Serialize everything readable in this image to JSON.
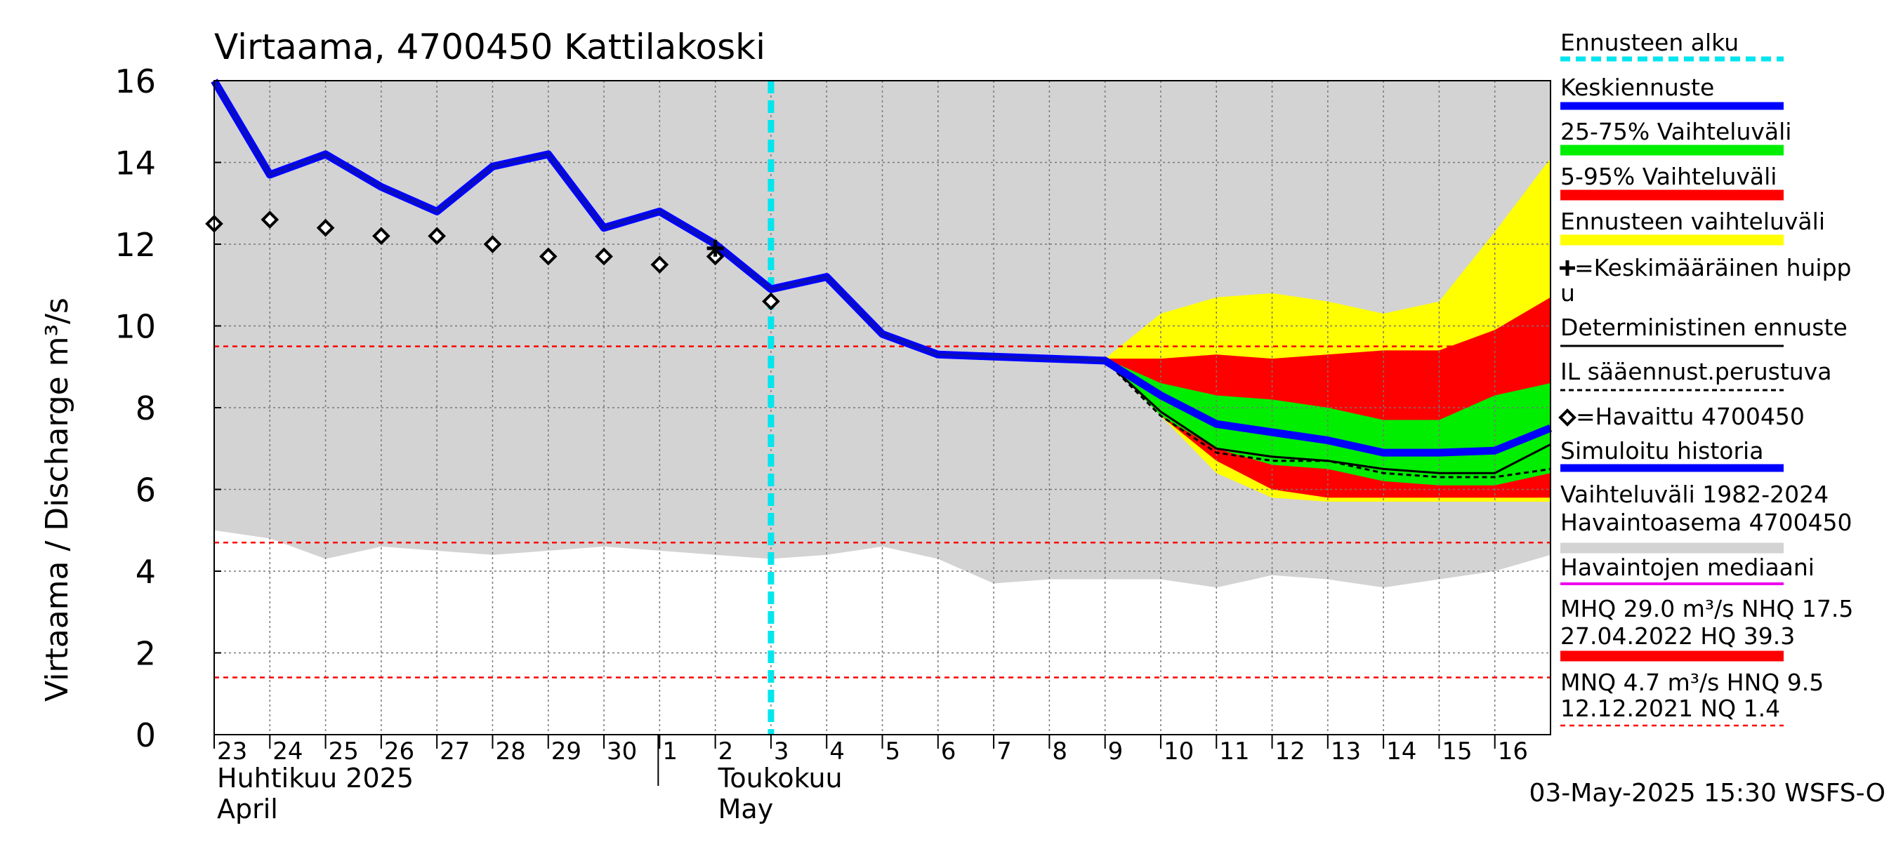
{
  "chart_data": {
    "type": "line",
    "title": "Virtaama, 4700450 Kattilakoski",
    "ylabel": "Virtaama / Discharge    m³/s",
    "ylim": [
      0,
      16
    ],
    "yticks": [
      0,
      2,
      4,
      6,
      8,
      10,
      12,
      14,
      16
    ],
    "grid": true,
    "legend_placement": "right",
    "x_ticks": [
      "23",
      "24",
      "25",
      "26",
      "27",
      "28",
      "29",
      "30",
      "1",
      "2",
      "3",
      "4",
      "5",
      "6",
      "7",
      "8",
      "9",
      "10",
      "11",
      "12",
      "13",
      "14",
      "15",
      "16"
    ],
    "month_labels": [
      {
        "fi": "Huhtikuu  2025",
        "en": "April",
        "at_day": 0
      },
      {
        "fi": "Toukokuu",
        "en": "May",
        "at_day": 9
      }
    ],
    "forecast_start_day": 10,
    "series": [
      {
        "name": "Vaihteluväli 1982-2024 Havaintoasema 4700450",
        "color": "#d3d3d3",
        "upper": [
          [
            0,
            16
          ],
          [
            24,
            16
          ]
        ],
        "lower": [
          [
            0,
            5
          ],
          [
            1,
            4.8
          ],
          [
            2,
            4.3
          ],
          [
            3,
            4.6
          ],
          [
            4,
            4.5
          ],
          [
            5,
            4.4
          ],
          [
            6,
            4.5
          ],
          [
            7,
            4.6
          ],
          [
            8,
            4.5
          ],
          [
            9,
            4.4
          ],
          [
            10,
            4.3
          ],
          [
            11,
            4.4
          ],
          [
            12,
            4.6
          ],
          [
            13,
            4.3
          ],
          [
            14,
            3.7
          ],
          [
            15,
            3.8
          ],
          [
            16,
            3.8
          ],
          [
            17,
            3.8
          ],
          [
            18,
            3.6
          ],
          [
            19,
            3.9
          ],
          [
            20,
            3.8
          ],
          [
            21,
            3.6
          ],
          [
            22,
            3.8
          ],
          [
            23,
            4.0
          ],
          [
            24,
            4.4
          ]
        ]
      },
      {
        "name": "Ennusteen vaihteluväli",
        "color": "#ffff00",
        "upper": [
          [
            16,
            9.2
          ],
          [
            17,
            10.3
          ],
          [
            18,
            10.7
          ],
          [
            19,
            10.8
          ],
          [
            20,
            10.6
          ],
          [
            21,
            10.3
          ],
          [
            22,
            10.6
          ],
          [
            23,
            12.3
          ],
          [
            24,
            14.1
          ]
        ],
        "lower": [
          [
            16,
            9.2
          ],
          [
            17,
            7.8
          ],
          [
            18,
            6.4
          ],
          [
            19,
            5.8
          ],
          [
            20,
            5.7
          ],
          [
            21,
            5.7
          ],
          [
            22,
            5.7
          ],
          [
            23,
            5.7
          ],
          [
            24,
            5.7
          ]
        ]
      },
      {
        "name": "5-95% Vaihteluväli",
        "color": "#ff0000",
        "upper": [
          [
            16,
            9.2
          ],
          [
            17,
            9.2
          ],
          [
            18,
            9.3
          ],
          [
            19,
            9.2
          ],
          [
            20,
            9.3
          ],
          [
            21,
            9.4
          ],
          [
            22,
            9.4
          ],
          [
            23,
            9.9
          ],
          [
            24,
            10.7
          ]
        ],
        "lower": [
          [
            16,
            9.2
          ],
          [
            17,
            7.8
          ],
          [
            18,
            6.7
          ],
          [
            19,
            6.0
          ],
          [
            20,
            5.8
          ],
          [
            21,
            5.8
          ],
          [
            22,
            5.8
          ],
          [
            23,
            5.8
          ],
          [
            24,
            5.8
          ]
        ]
      },
      {
        "name": "25-75% Vaihteluväli",
        "color": "#00ee00",
        "upper": [
          [
            16,
            9.2
          ],
          [
            17,
            8.6
          ],
          [
            18,
            8.3
          ],
          [
            19,
            8.2
          ],
          [
            20,
            8.0
          ],
          [
            21,
            7.7
          ],
          [
            22,
            7.7
          ],
          [
            23,
            8.3
          ],
          [
            24,
            8.6
          ]
        ],
        "lower": [
          [
            16,
            9.2
          ],
          [
            17,
            7.8
          ],
          [
            18,
            7.0
          ],
          [
            19,
            6.6
          ],
          [
            20,
            6.5
          ],
          [
            21,
            6.2
          ],
          [
            22,
            6.1
          ],
          [
            23,
            6.1
          ],
          [
            24,
            6.4
          ]
        ]
      },
      {
        "name": "Keskiennuste",
        "color": "#0000ff",
        "points": [
          [
            0,
            16
          ],
          [
            1,
            13.7
          ],
          [
            2,
            14.2
          ],
          [
            3,
            13.4
          ],
          [
            4,
            12.8
          ],
          [
            5,
            13.9
          ],
          [
            6,
            14.2
          ],
          [
            7,
            12.4
          ],
          [
            8,
            12.8
          ],
          [
            9,
            12.0
          ],
          [
            10,
            10.9
          ],
          [
            11,
            11.2
          ],
          [
            12,
            9.8
          ],
          [
            13,
            9.3
          ],
          [
            14,
            9.25
          ],
          [
            15,
            9.2
          ],
          [
            16,
            9.15
          ],
          [
            17,
            8.3
          ],
          [
            18,
            7.6
          ],
          [
            19,
            7.4
          ],
          [
            20,
            7.2
          ],
          [
            21,
            6.9
          ],
          [
            22,
            6.9
          ],
          [
            23,
            6.95
          ],
          [
            24,
            7.5
          ]
        ]
      },
      {
        "name": "Deterministinen ennuste",
        "color": "#000000",
        "points": [
          [
            16,
            9.15
          ],
          [
            17,
            7.9
          ],
          [
            18,
            7.0
          ],
          [
            19,
            6.8
          ],
          [
            20,
            6.7
          ],
          [
            21,
            6.5
          ],
          [
            22,
            6.4
          ],
          [
            23,
            6.4
          ],
          [
            24,
            7.1
          ]
        ]
      },
      {
        "name": "IL sääennust.perustuva",
        "color": "#000000",
        "dash": true,
        "points": [
          [
            16,
            9.15
          ],
          [
            17,
            7.8
          ],
          [
            18,
            6.9
          ],
          [
            19,
            6.7
          ],
          [
            20,
            6.7
          ],
          [
            21,
            6.4
          ],
          [
            22,
            6.3
          ],
          [
            23,
            6.3
          ],
          [
            24,
            6.5
          ]
        ]
      },
      {
        "name": "=Havaittu 4700450",
        "points": [
          [
            0,
            12.5
          ],
          [
            1,
            12.6
          ],
          [
            2,
            12.4
          ],
          [
            3,
            12.2
          ],
          [
            4,
            12.2
          ],
          [
            5,
            12.0
          ],
          [
            6,
            11.7
          ],
          [
            7,
            11.7
          ],
          [
            8,
            11.5
          ],
          [
            9,
            11.7
          ],
          [
            10,
            10.6
          ]
        ]
      },
      {
        "name": "=Keskimääräinen huippu",
        "points": [
          [
            9,
            11.9
          ]
        ]
      }
    ],
    "reference_lines": [
      {
        "label": "HNQ",
        "value": 9.5,
        "color": "#ff0000"
      },
      {
        "label": "MNQ",
        "value": 4.7,
        "color": "#ff0000"
      },
      {
        "label": "NQ",
        "value": 1.4,
        "color": "#ff0000"
      }
    ],
    "legend": [
      {
        "text": "Ennusteen alku",
        "line": "cyan-dashed"
      },
      {
        "text": "Keskiennuste",
        "line": "blue"
      },
      {
        "text": "25-75% Vaihteluväli",
        "line": "green"
      },
      {
        "text": "5-95% Vaihteluväli",
        "line": "red"
      },
      {
        "text": "Ennusteen vaihteluväli",
        "line": "yellow"
      },
      {
        "text": "=Keskimääräinen huipp",
        "text2": "u",
        "line": "none",
        "marker": "plus"
      },
      {
        "text": "Deterministinen ennuste",
        "line": "black"
      },
      {
        "text": "IL sääennust.perustuva",
        "line": "black-dashed"
      },
      {
        "text": "=Havaittu 4700450",
        "line": "none",
        "marker": "diamond"
      },
      {
        "text": "Simuloitu historia",
        "line": "blue"
      },
      {
        "text": "Vaihteluväli 1982-2024",
        "text2": " Havaintoasema 4700450",
        "line": "gray"
      },
      {
        "text": "Havaintojen mediaani",
        "line": "magenta"
      },
      {
        "text": "MHQ 29.0 m³/s NHQ 17.5",
        "text2": "27.04.2022 HQ 39.3",
        "line": "red"
      },
      {
        "text": "MNQ  4.7 m³/s HNQ  9.5",
        "text2": "12.12.2021 NQ  1.4",
        "line": "red-dashed"
      }
    ],
    "footer": "03-May-2025 15:30 WSFS-O"
  }
}
